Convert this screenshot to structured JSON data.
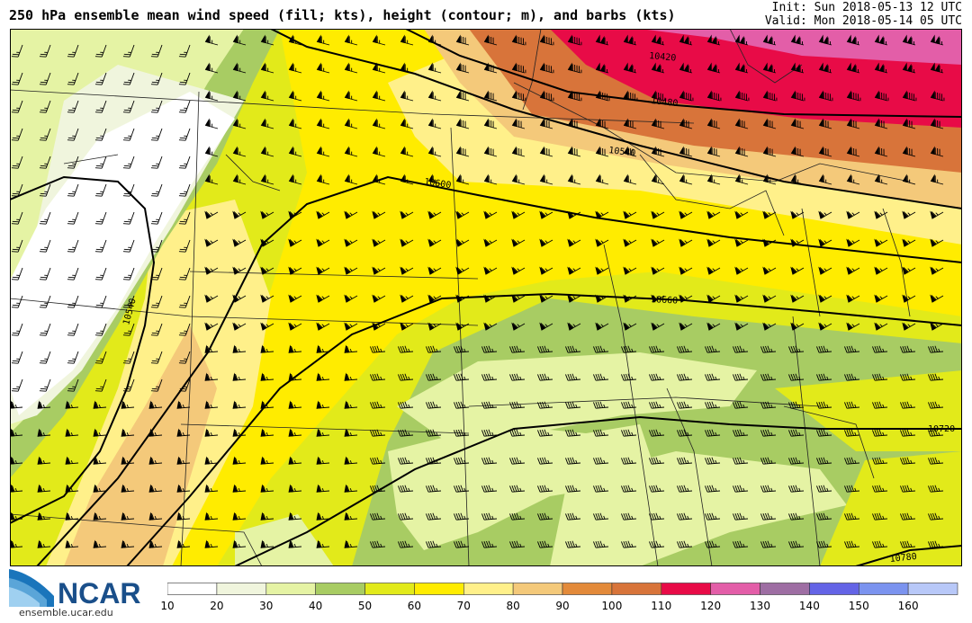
{
  "header": {
    "title": "250 hPa ensemble mean wind speed (fill; kts), height (contour; m), and barbs (kts)",
    "init": "Init: Sun 2018-05-13 12 UTC",
    "valid": "Valid: Mon 2018-05-14 05 UTC"
  },
  "contour_labels": [
    "10420",
    "10480",
    "10540",
    "10600",
    "10660",
    "10720",
    "10780",
    "10540"
  ],
  "colorbar": {
    "labels": [
      "10",
      "20",
      "30",
      "40",
      "50",
      "60",
      "70",
      "80",
      "90",
      "100",
      "110",
      "120",
      "130",
      "140",
      "150",
      "160"
    ],
    "colors": [
      "#ffffff",
      "#f0f5dd",
      "#e5f3a4",
      "#a8cc63",
      "#e2ea1a",
      "#ffec00",
      "#fff08a",
      "#f4c97a",
      "#e38a3a",
      "#d8743a",
      "#e80b47",
      "#e35ea8",
      "#9e6ea3",
      "#6464e6",
      "#7b93ef",
      "#b8c8f8"
    ]
  },
  "logo": {
    "name": "NCAR",
    "url": "ensemble.ucar.edu"
  },
  "colors": {
    "contour": "#000000",
    "barb": "#000000",
    "border": "#222222"
  }
}
